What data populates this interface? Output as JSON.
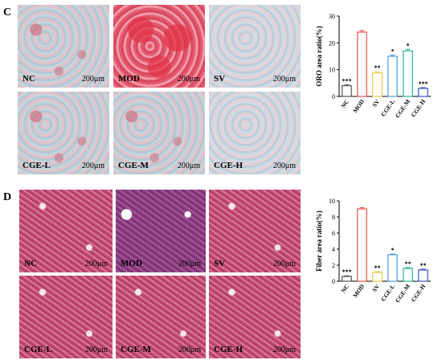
{
  "panels": [
    {
      "letter": "C",
      "scale_text": "200μm",
      "tiles": [
        "NC",
        "MOD",
        "SV",
        "CGE-L",
        "CGE-M",
        "CGE-H"
      ]
    },
    {
      "letter": "D",
      "scale_text": "200μm",
      "tiles": [
        "NC",
        "MOD",
        "SV",
        "CGE-L",
        "CGE-M",
        "CGE-H"
      ]
    }
  ],
  "colors": {
    "NC": "#555555",
    "MOD": "#e8504e",
    "SV": "#e8c84a",
    "CGE-L": "#4a9be8",
    "CGE-M": "#2ab77e",
    "CGE-H": "#3a58c8"
  },
  "chart_data": [
    {
      "type": "bar",
      "categories": [
        "NC",
        "MOD",
        "SV",
        "CGE-L",
        "CGE-M",
        "CGE-H"
      ],
      "values": [
        4.0,
        24.0,
        8.8,
        15.0,
        17.0,
        3.0
      ],
      "errors": [
        0.4,
        0.6,
        0.5,
        0.4,
        0.6,
        0.3
      ],
      "significance": [
        "***",
        "",
        "**",
        "*",
        "*",
        "***"
      ],
      "ylabel": "ORO area ratio(%)",
      "xlabel": "",
      "ylim": [
        0,
        30
      ],
      "yticks": [
        0,
        10,
        20,
        30
      ]
    },
    {
      "type": "bar",
      "categories": [
        "NC",
        "MOD",
        "SV",
        "CGE-L",
        "CGE-M",
        "CGE-H"
      ],
      "values": [
        0.6,
        9.0,
        1.1,
        3.3,
        1.6,
        1.4
      ],
      "errors": [
        0.08,
        0.15,
        0.1,
        0.1,
        0.1,
        0.1
      ],
      "significance": [
        "***",
        "",
        "**",
        "*",
        "**",
        "**"
      ],
      "ylabel": "Fiber area ratio(%)",
      "xlabel": "",
      "ylim": [
        0,
        10
      ],
      "yticks": [
        0,
        2,
        4,
        6,
        8,
        10
      ]
    }
  ]
}
